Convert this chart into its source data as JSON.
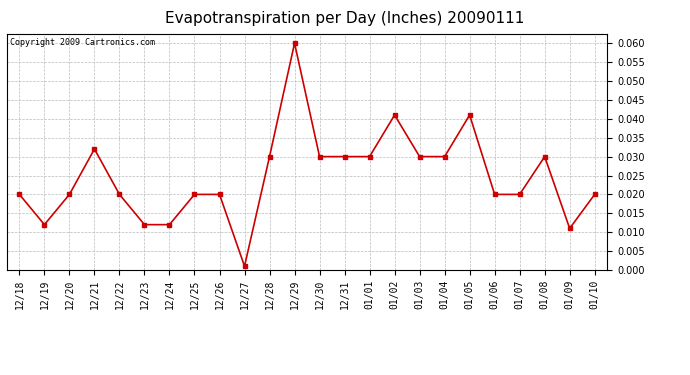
{
  "title": "Evapotranspiration per Day (Inches) 20090111",
  "copyright_text": "Copyright 2009 Cartronics.com",
  "x_labels": [
    "12/18",
    "12/19",
    "12/20",
    "12/21",
    "12/22",
    "12/23",
    "12/24",
    "12/25",
    "12/26",
    "12/27",
    "12/28",
    "12/29",
    "12/30",
    "12/31",
    "01/01",
    "01/02",
    "01/03",
    "01/04",
    "01/05",
    "01/06",
    "01/07",
    "01/08",
    "01/09",
    "01/10"
  ],
  "y_values": [
    0.02,
    0.012,
    0.02,
    0.032,
    0.02,
    0.012,
    0.012,
    0.02,
    0.02,
    0.001,
    0.03,
    0.06,
    0.03,
    0.03,
    0.03,
    0.041,
    0.03,
    0.03,
    0.041,
    0.02,
    0.02,
    0.03,
    0.011,
    0.02
  ],
  "line_color": "#cc0000",
  "marker": "s",
  "marker_size": 2.5,
  "line_width": 1.2,
  "bg_color": "#ffffff",
  "grid_color": "#bbbbbb",
  "ylim": [
    0.0,
    0.0625
  ],
  "yticks": [
    0.0,
    0.005,
    0.01,
    0.015,
    0.02,
    0.025,
    0.03,
    0.035,
    0.04,
    0.045,
    0.05,
    0.055,
    0.06
  ],
  "title_fontsize": 11,
  "copyright_fontsize": 6,
  "tick_fontsize": 7
}
